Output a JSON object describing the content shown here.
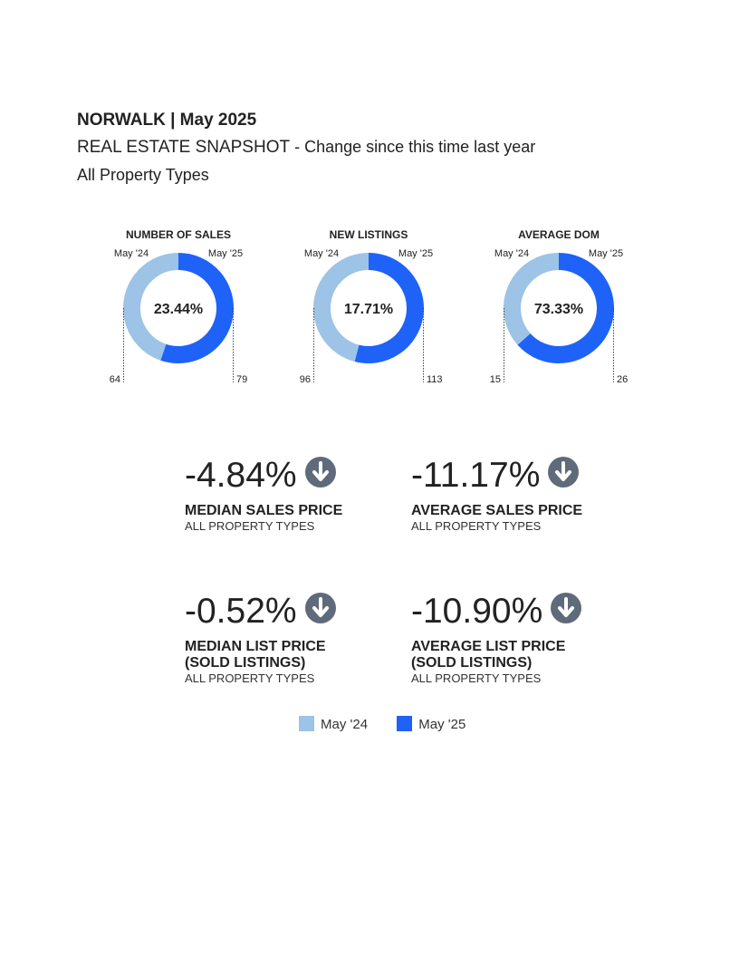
{
  "header": {
    "title": "NORWALK | May 2025",
    "snapshot": "REAL ESTATE SNAPSHOT",
    "snapshot_sub": " - Change since this time last year",
    "property_types": "All Property Types"
  },
  "colors": {
    "prior": "#9dc3e6",
    "current": "#1e62f8",
    "arrow": "#5f6b7a"
  },
  "chart_data": [
    {
      "type": "pie",
      "title": "NUMBER OF SALES",
      "center_label": "23.44%",
      "series": [
        {
          "name": "May '24",
          "value": 64,
          "label": "64"
        },
        {
          "name": "May '25",
          "value": 79,
          "label": "79"
        }
      ]
    },
    {
      "type": "pie",
      "title": "NEW LISTINGS",
      "center_label": "17.71%",
      "series": [
        {
          "name": "May '24",
          "value": 96,
          "label": "96"
        },
        {
          "name": "May '25",
          "value": 113,
          "label": "113"
        }
      ]
    },
    {
      "type": "pie",
      "title": "AVERAGE DOM",
      "center_label": "73.33%",
      "series": [
        {
          "name": "May '24",
          "value": 15,
          "label": "15"
        },
        {
          "name": "May '25",
          "value": 26,
          "label": "26"
        }
      ]
    }
  ],
  "kpis": [
    {
      "value": "-4.84%",
      "label": "MEDIAN SALES PRICE",
      "label2": "",
      "sub": "ALL PROPERTY TYPES",
      "icon": "arrow-down-circle-icon"
    },
    {
      "value": "-11.17%",
      "label": "AVERAGE SALES PRICE",
      "label2": "",
      "sub": "ALL PROPERTY TYPES",
      "icon": "arrow-down-circle-icon"
    },
    {
      "value": "-0.52%",
      "label": "MEDIAN LIST PRICE",
      "label2": "(SOLD LISTINGS)",
      "sub": "ALL PROPERTY TYPES",
      "icon": "arrow-down-circle-icon"
    },
    {
      "value": "-10.90%",
      "label": "AVERAGE LIST PRICE",
      "label2": "(SOLD LISTINGS)",
      "sub": "ALL PROPERTY TYPES",
      "icon": "arrow-down-circle-icon"
    }
  ],
  "legend": [
    {
      "label": "May '24"
    },
    {
      "label": "May '25"
    }
  ]
}
